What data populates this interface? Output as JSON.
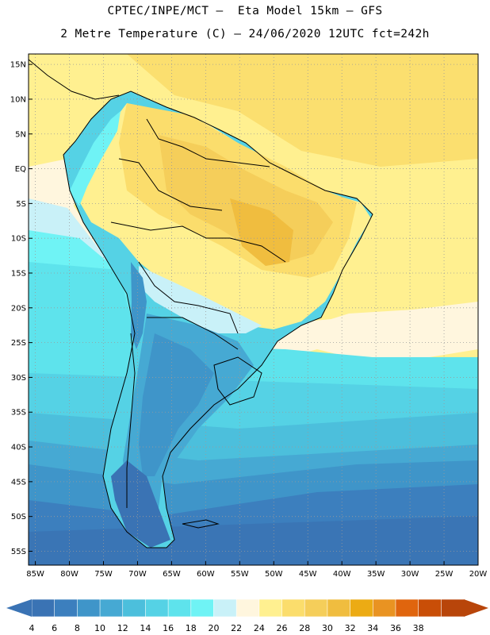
{
  "title": {
    "line1": "CPTEC/INPE/MCT –  Eta Model 15km – GFS",
    "line2": "2 Metre Temperature (C) – 24/06/2020 12UTC fct=242h"
  },
  "map": {
    "lon_range": [
      -86,
      -20
    ],
    "lat_range": [
      -57,
      16.5
    ],
    "lat_ticks": [
      {
        "value": 15,
        "label": "15N"
      },
      {
        "value": 10,
        "label": "10N"
      },
      {
        "value": 5,
        "label": "5N"
      },
      {
        "value": 0,
        "label": "EQ"
      },
      {
        "value": -5,
        "label": "5S"
      },
      {
        "value": -10,
        "label": "10S"
      },
      {
        "value": -15,
        "label": "15S"
      },
      {
        "value": -20,
        "label": "20S"
      },
      {
        "value": -25,
        "label": "25S"
      },
      {
        "value": -30,
        "label": "30S"
      },
      {
        "value": -35,
        "label": "35S"
      },
      {
        "value": -40,
        "label": "40S"
      },
      {
        "value": -45,
        "label": "45S"
      },
      {
        "value": -50,
        "label": "50S"
      },
      {
        "value": -55,
        "label": "55S"
      }
    ],
    "lon_ticks": [
      {
        "value": -85,
        "label": "85W"
      },
      {
        "value": -80,
        "label": "80W"
      },
      {
        "value": -75,
        "label": "75W"
      },
      {
        "value": -70,
        "label": "70W"
      },
      {
        "value": -65,
        "label": "65W"
      },
      {
        "value": -60,
        "label": "60W"
      },
      {
        "value": -55,
        "label": "55W"
      },
      {
        "value": -50,
        "label": "50W"
      },
      {
        "value": -45,
        "label": "45W"
      },
      {
        "value": -40,
        "label": "40W"
      },
      {
        "value": -35,
        "label": "35W"
      },
      {
        "value": -30,
        "label": "30W"
      },
      {
        "value": -25,
        "label": "25W"
      },
      {
        "value": -20,
        "label": "20W"
      }
    ]
  },
  "colorbar": {
    "labels": [
      "4",
      "6",
      "8",
      "10",
      "12",
      "14",
      "16",
      "18",
      "20",
      "22",
      "24",
      "26",
      "28",
      "30",
      "32",
      "34",
      "36",
      "38"
    ],
    "colors": [
      "#3a73b4",
      "#3c7fbe",
      "#3f95c9",
      "#46a9d3",
      "#4cbfdc",
      "#55d2e5",
      "#5ee3ec",
      "#6ff3f5",
      "#c9f1f8",
      "#fff6de",
      "#fff090",
      "#fbdd6c",
      "#f5ce5a",
      "#f0bd3f",
      "#ecab14",
      "#e99322",
      "#e0650e",
      "#c94e07",
      "#b8450a"
    ]
  }
}
